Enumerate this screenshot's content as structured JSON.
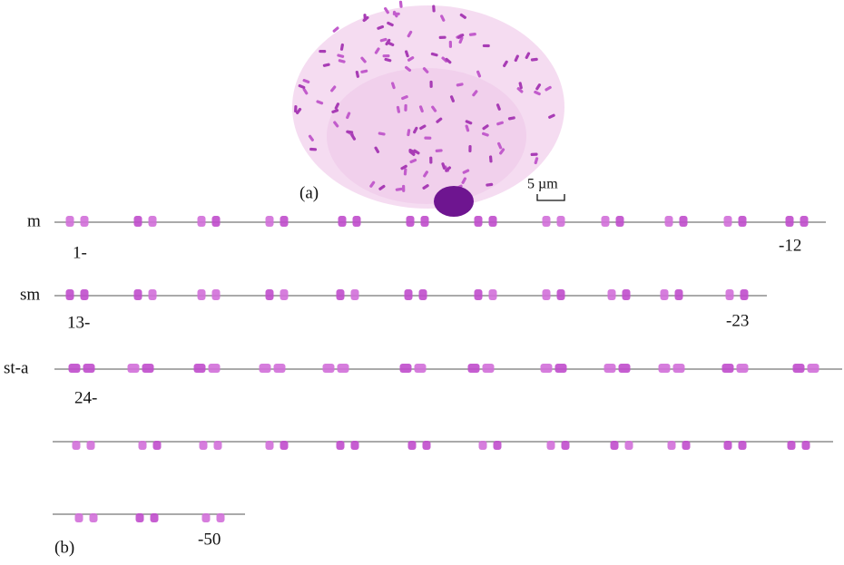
{
  "figure": {
    "panel_a": {
      "label": "(a)",
      "scale_bar": "5 µm"
    },
    "panel_b": {
      "label": "(b)",
      "rows": [
        {
          "class": "m",
          "start": "1-",
          "end": "-12"
        },
        {
          "class": "sm",
          "start": "13-",
          "end": "-23"
        },
        {
          "class": "st-a",
          "start": "24-"
        },
        {
          "end": "-50"
        }
      ]
    }
  }
}
